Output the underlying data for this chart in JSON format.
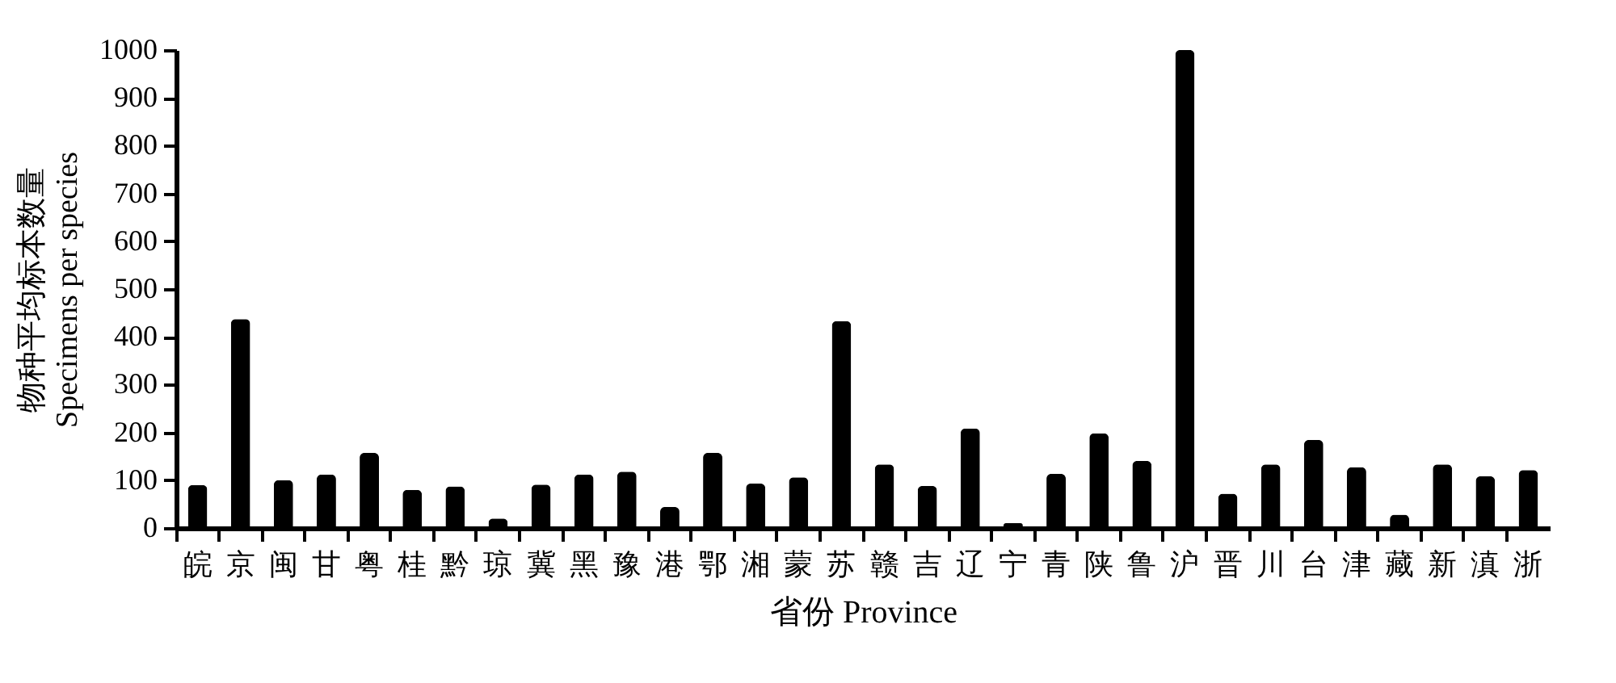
{
  "chart_data": {
    "type": "bar",
    "xlabel": "省份 Province",
    "ylabel": "物种平均标本数量\nSpecimens per species",
    "categories": [
      "皖",
      "京",
      "闽",
      "甘",
      "粤",
      "桂",
      "黔",
      "琼",
      "冀",
      "黑",
      "豫",
      "港",
      "鄂",
      "湘",
      "蒙",
      "苏",
      "赣",
      "吉",
      "辽",
      "宁",
      "青",
      "陕",
      "鲁",
      "沪",
      "晋",
      "川",
      "台",
      "津",
      "藏",
      "新",
      "滇",
      "浙"
    ],
    "values": [
      90,
      437,
      100,
      112,
      157,
      80,
      87,
      20,
      91,
      112,
      118,
      44,
      157,
      93,
      106,
      433,
      133,
      88,
      208,
      10,
      113,
      198,
      140,
      1000,
      72,
      133,
      184,
      127,
      28,
      133,
      108,
      121
    ],
    "color": "#000000",
    "ylim": [
      0,
      1000
    ],
    "yticks": [
      0,
      100,
      200,
      300,
      400,
      500,
      600,
      700,
      800,
      900,
      1000
    ],
    "grid": false,
    "legend": false
  }
}
